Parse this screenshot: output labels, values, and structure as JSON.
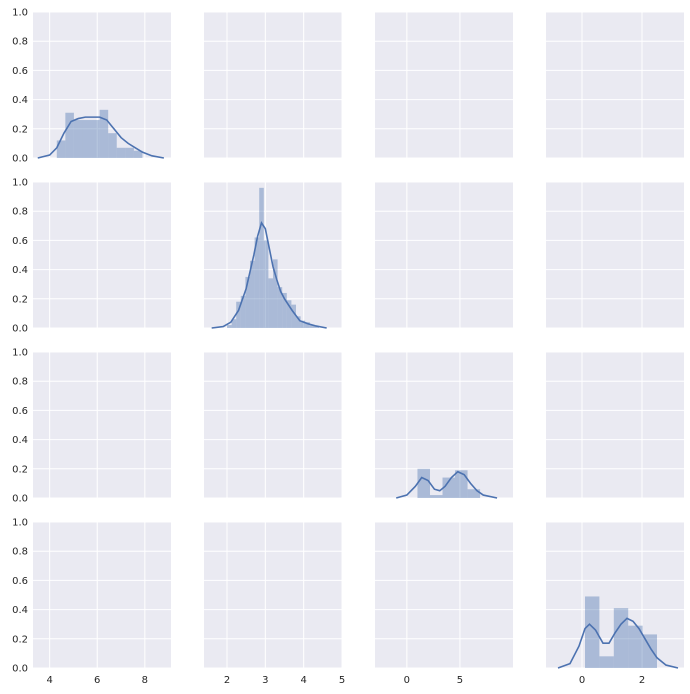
{
  "colors": {
    "panel_bg": "#eaeaf2",
    "grid": "#ffffff",
    "bar": "#4c72b0",
    "line": "#4c72b0",
    "text": "#262626"
  },
  "chart_data": {
    "type": "pairgrid",
    "rows": 4,
    "cols": 4,
    "grid": true,
    "y_ticks": [
      "0.0",
      "0.2",
      "0.4",
      "0.6",
      "0.8",
      "1.0"
    ],
    "ylim": [
      0,
      1.0
    ],
    "columns": [
      {
        "xlim": [
          3.3,
          9.1
        ],
        "xticks": [
          4,
          6,
          8
        ],
        "xtick_labels": [
          "4",
          "6",
          "8"
        ]
      },
      {
        "xlim": [
          1.4,
          5.0
        ],
        "xticks": [
          2,
          3,
          4,
          5
        ],
        "xtick_labels": [
          "2",
          "3",
          "4",
          "5"
        ]
      },
      {
        "xlim": [
          -3.0,
          10.0
        ],
        "xticks": [
          0,
          5
        ],
        "xtick_labels": [
          "0",
          "5"
        ]
      },
      {
        "xlim": [
          -1.2,
          3.4
        ],
        "xticks": [
          0,
          2
        ],
        "xtick_labels": [
          "0",
          "2"
        ]
      }
    ],
    "diagonal": [
      {
        "bins": [
          {
            "x0": 4.3,
            "x1": 4.66,
            "value": 0.12
          },
          {
            "x0": 4.66,
            "x1": 5.02,
            "value": 0.31
          },
          {
            "x0": 5.02,
            "x1": 5.38,
            "value": 0.26
          },
          {
            "x0": 5.38,
            "x1": 5.74,
            "value": 0.26
          },
          {
            "x0": 5.74,
            "x1": 6.1,
            "value": 0.26
          },
          {
            "x0": 6.1,
            "x1": 6.46,
            "value": 0.33
          },
          {
            "x0": 6.46,
            "x1": 6.82,
            "value": 0.17
          },
          {
            "x0": 6.82,
            "x1": 7.18,
            "value": 0.07
          },
          {
            "x0": 7.18,
            "x1": 7.54,
            "value": 0.07
          },
          {
            "x0": 7.54,
            "x1": 7.9,
            "value": 0.05
          }
        ],
        "kde": [
          [
            3.5,
            0.0
          ],
          [
            4.0,
            0.02
          ],
          [
            4.3,
            0.07
          ],
          [
            4.6,
            0.17
          ],
          [
            4.9,
            0.25
          ],
          [
            5.2,
            0.27
          ],
          [
            5.5,
            0.28
          ],
          [
            5.8,
            0.28
          ],
          [
            6.1,
            0.28
          ],
          [
            6.4,
            0.26
          ],
          [
            6.7,
            0.2
          ],
          [
            7.0,
            0.14
          ],
          [
            7.3,
            0.1
          ],
          [
            7.6,
            0.07
          ],
          [
            7.9,
            0.04
          ],
          [
            8.3,
            0.015
          ],
          [
            8.8,
            0.0
          ]
        ]
      },
      {
        "bins": [
          {
            "x0": 2.0,
            "x1": 2.12,
            "value": 0.02
          },
          {
            "x0": 2.12,
            "x1": 2.24,
            "value": 0.06
          },
          {
            "x0": 2.24,
            "x1": 2.36,
            "value": 0.18
          },
          {
            "x0": 2.36,
            "x1": 2.48,
            "value": 0.22
          },
          {
            "x0": 2.48,
            "x1": 2.6,
            "value": 0.35
          },
          {
            "x0": 2.6,
            "x1": 2.72,
            "value": 0.46
          },
          {
            "x0": 2.72,
            "x1": 2.84,
            "value": 0.62
          },
          {
            "x0": 2.84,
            "x1": 2.96,
            "value": 0.96
          },
          {
            "x0": 2.96,
            "x1": 3.08,
            "value": 0.6
          },
          {
            "x0": 3.08,
            "x1": 3.2,
            "value": 0.34
          },
          {
            "x0": 3.2,
            "x1": 3.32,
            "value": 0.47
          },
          {
            "x0": 3.32,
            "x1": 3.44,
            "value": 0.28
          },
          {
            "x0": 3.44,
            "x1": 3.56,
            "value": 0.24
          },
          {
            "x0": 3.56,
            "x1": 3.68,
            "value": 0.19
          },
          {
            "x0": 3.68,
            "x1": 3.8,
            "value": 0.16
          },
          {
            "x0": 3.8,
            "x1": 3.92,
            "value": 0.08
          },
          {
            "x0": 3.92,
            "x1": 4.04,
            "value": 0.05
          },
          {
            "x0": 4.04,
            "x1": 4.16,
            "value": 0.04
          },
          {
            "x0": 4.16,
            "x1": 4.28,
            "value": 0.02
          },
          {
            "x0": 4.28,
            "x1": 4.4,
            "value": 0.01
          }
        ],
        "kde": [
          [
            1.6,
            0.0
          ],
          [
            1.9,
            0.01
          ],
          [
            2.1,
            0.04
          ],
          [
            2.3,
            0.12
          ],
          [
            2.5,
            0.27
          ],
          [
            2.7,
            0.5
          ],
          [
            2.8,
            0.63
          ],
          [
            2.9,
            0.72
          ],
          [
            3.0,
            0.68
          ],
          [
            3.1,
            0.55
          ],
          [
            3.2,
            0.42
          ],
          [
            3.3,
            0.33
          ],
          [
            3.4,
            0.25
          ],
          [
            3.5,
            0.2
          ],
          [
            3.7,
            0.12
          ],
          [
            3.9,
            0.05
          ],
          [
            4.1,
            0.03
          ],
          [
            4.3,
            0.015
          ],
          [
            4.6,
            0.0
          ]
        ]
      },
      {
        "bins": [
          {
            "x0": 1.0,
            "x1": 2.18,
            "value": 0.2
          },
          {
            "x0": 2.18,
            "x1": 3.36,
            "value": 0.02
          },
          {
            "x0": 3.36,
            "x1": 4.54,
            "value": 0.14
          },
          {
            "x0": 4.54,
            "x1": 5.72,
            "value": 0.19
          },
          {
            "x0": 5.72,
            "x1": 6.9,
            "value": 0.06
          }
        ],
        "kde": [
          [
            -1.0,
            0.0
          ],
          [
            0.0,
            0.02
          ],
          [
            0.8,
            0.08
          ],
          [
            1.4,
            0.14
          ],
          [
            2.0,
            0.12
          ],
          [
            2.6,
            0.06
          ],
          [
            3.1,
            0.05
          ],
          [
            3.6,
            0.08
          ],
          [
            4.2,
            0.14
          ],
          [
            4.8,
            0.18
          ],
          [
            5.4,
            0.16
          ],
          [
            6.0,
            0.1
          ],
          [
            6.6,
            0.05
          ],
          [
            7.2,
            0.02
          ],
          [
            8.5,
            0.0
          ]
        ]
      },
      {
        "bins": [
          {
            "x0": 0.1,
            "x1": 0.58,
            "value": 0.49
          },
          {
            "x0": 0.58,
            "x1": 1.06,
            "value": 0.08
          },
          {
            "x0": 1.06,
            "x1": 1.54,
            "value": 0.41
          },
          {
            "x0": 1.54,
            "x1": 2.02,
            "value": 0.29
          },
          {
            "x0": 2.02,
            "x1": 2.5,
            "value": 0.23
          }
        ],
        "kde": [
          [
            -0.8,
            0.0
          ],
          [
            -0.4,
            0.03
          ],
          [
            -0.1,
            0.15
          ],
          [
            0.1,
            0.27
          ],
          [
            0.25,
            0.3
          ],
          [
            0.45,
            0.26
          ],
          [
            0.7,
            0.17
          ],
          [
            0.9,
            0.17
          ],
          [
            1.1,
            0.24
          ],
          [
            1.3,
            0.3
          ],
          [
            1.5,
            0.34
          ],
          [
            1.7,
            0.32
          ],
          [
            1.9,
            0.27
          ],
          [
            2.1,
            0.2
          ],
          [
            2.3,
            0.13
          ],
          [
            2.5,
            0.07
          ],
          [
            2.8,
            0.02
          ],
          [
            3.2,
            0.0
          ]
        ]
      }
    ]
  }
}
